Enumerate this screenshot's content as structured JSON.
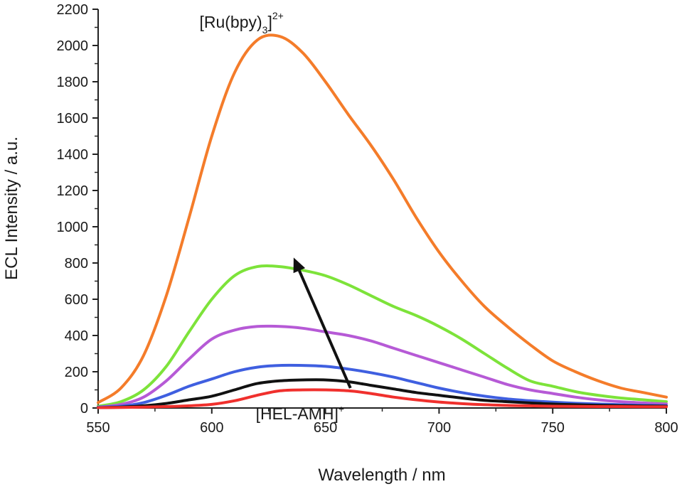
{
  "chart_data": {
    "type": "line",
    "title": "",
    "xlabel": "Wavelength / nm",
    "ylabel": "ECL Intensity / a.u.",
    "xlim": [
      550,
      800
    ],
    "ylim": [
      0,
      2200
    ],
    "xticks": [
      550,
      600,
      650,
      700,
      750,
      800
    ],
    "yticks": [
      0,
      200,
      400,
      600,
      800,
      1000,
      1200,
      1400,
      1600,
      1800,
      2000,
      2200
    ],
    "xtick_labels": [
      "550",
      "600",
      "650",
      "700",
      "750",
      "800"
    ],
    "ytick_labels": [
      "0",
      "200",
      "400",
      "600",
      "800",
      "1000",
      "1200",
      "1400",
      "1600",
      "1800",
      "2000",
      "2200"
    ],
    "grid": false,
    "legend": "none",
    "x": [
      550,
      560,
      570,
      580,
      590,
      600,
      610,
      620,
      630,
      640,
      650,
      660,
      670,
      680,
      690,
      700,
      710,
      720,
      730,
      740,
      750,
      760,
      770,
      780,
      790,
      800
    ],
    "series": [
      {
        "color": "#f47c2a",
        "values": [
          30,
          110,
          290,
          620,
          1050,
          1500,
          1850,
          2030,
          2050,
          1960,
          1800,
          1620,
          1450,
          1260,
          1050,
          860,
          700,
          560,
          450,
          350,
          260,
          200,
          150,
          110,
          85,
          60
        ]
      },
      {
        "color": "#7de33a",
        "values": [
          10,
          35,
          100,
          230,
          420,
          600,
          730,
          780,
          780,
          760,
          730,
          680,
          620,
          560,
          510,
          450,
          380,
          300,
          220,
          150,
          120,
          90,
          70,
          55,
          45,
          35
        ]
      },
      {
        "color": "#b65ad6",
        "values": [
          5,
          20,
          60,
          150,
          270,
          380,
          430,
          450,
          450,
          440,
          420,
          400,
          370,
          330,
          290,
          250,
          210,
          170,
          130,
          100,
          80,
          60,
          45,
          35,
          28,
          22
        ]
      },
      {
        "color": "#3f5fe0",
        "values": [
          5,
          10,
          30,
          70,
          120,
          160,
          200,
          225,
          235,
          235,
          230,
          215,
          195,
          170,
          140,
          110,
          85,
          65,
          50,
          40,
          32,
          26,
          22,
          18,
          15,
          13
        ]
      },
      {
        "color": "#111111",
        "values": [
          2,
          5,
          12,
          25,
          45,
          65,
          100,
          135,
          150,
          155,
          155,
          145,
          125,
          105,
          85,
          70,
          55,
          42,
          35,
          28,
          22,
          18,
          15,
          13,
          11,
          10
        ]
      },
      {
        "color": "#f0302d",
        "values": [
          2,
          3,
          5,
          8,
          12,
          20,
          40,
          70,
          95,
          100,
          100,
          95,
          80,
          60,
          45,
          33,
          24,
          18,
          14,
          12,
          10,
          9,
          8,
          8,
          7,
          7
        ]
      }
    ],
    "annotations": [
      {
        "text": "[Ru(bpy)",
        "sub": "3",
        "bracket": "]",
        "sup": "2+",
        "x": 629,
        "y": 2090
      },
      {
        "text": "[HEL-AMH]",
        "sup": "+",
        "x": 650,
        "y": -40
      }
    ],
    "arrow": {
      "from": [
        661,
        110
      ],
      "to": [
        636,
        830
      ],
      "color": "#111111"
    }
  }
}
